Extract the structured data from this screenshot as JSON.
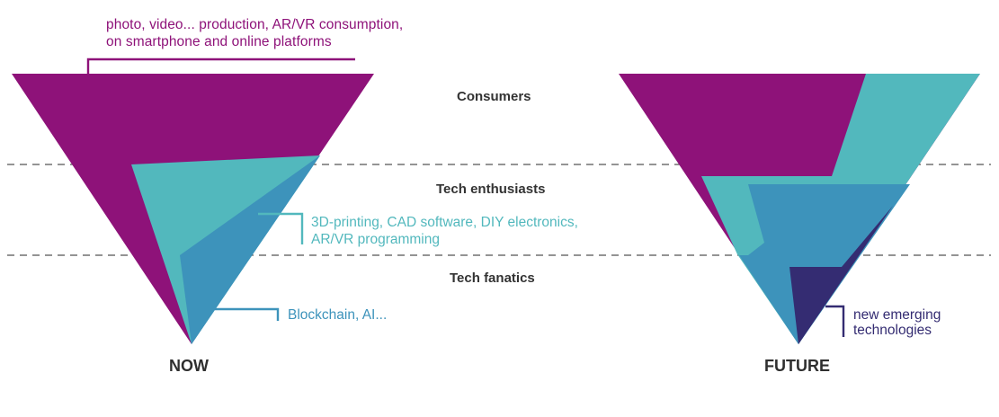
{
  "colors": {
    "purple": "#8e1279",
    "teal": "#52b8bd",
    "blue": "#3d93bb",
    "navy": "#342c72",
    "text": "#333333"
  },
  "annotations": {
    "consumer_use": {
      "line1": "photo, video... production, AR/VR consumption,",
      "line2": "on smartphone and online platforms"
    },
    "enthusiast_use": {
      "line1": "3D-printing, CAD software, DIY electronics,",
      "line2": "AR/VR programming"
    },
    "fanatic_use": "Blockchain, AI...",
    "emerging": {
      "line1": "new emerging",
      "line2": "technologies"
    }
  },
  "tiers": {
    "consumers": "Consumers",
    "enthusiasts": "Tech enthusiasts",
    "fanatics": "Tech fanatics"
  },
  "panels": {
    "now": "NOW",
    "future": "FUTURE"
  }
}
